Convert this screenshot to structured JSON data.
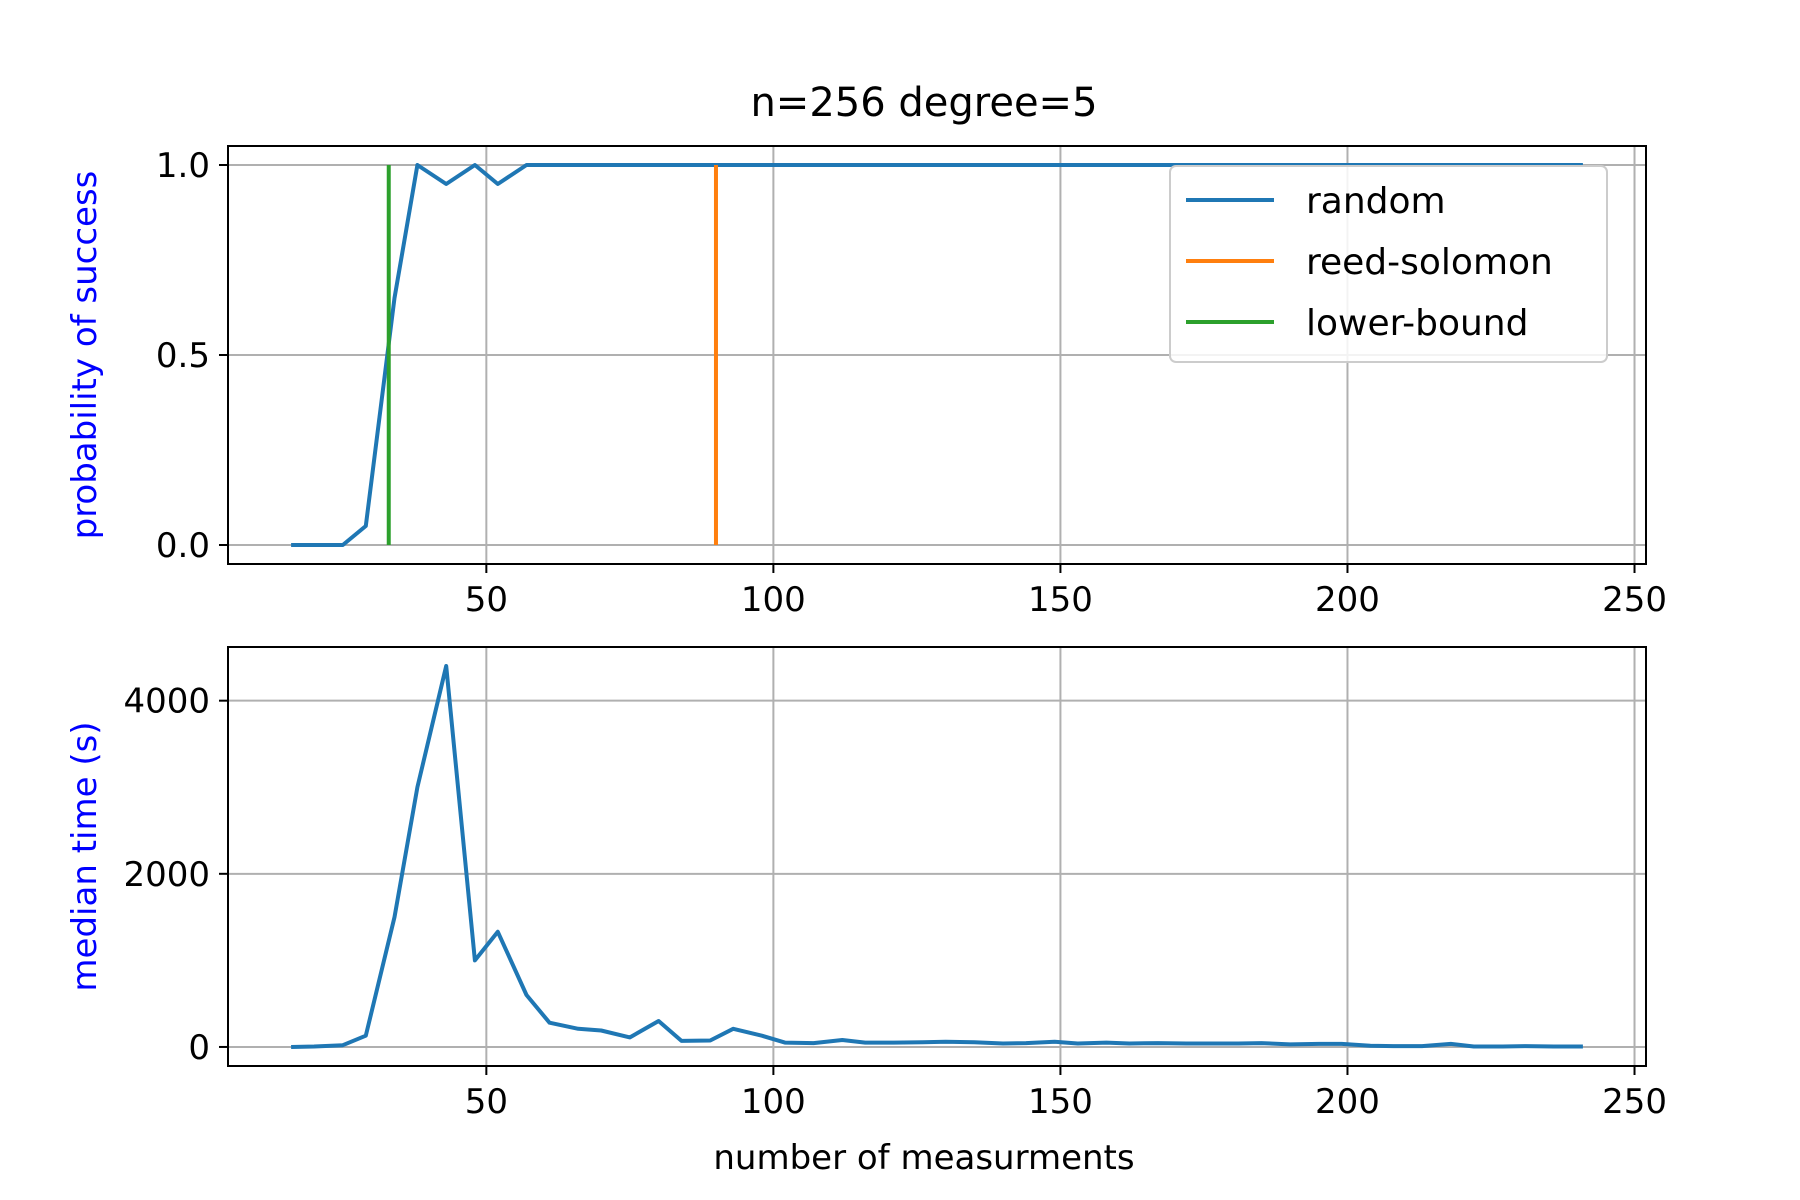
{
  "chart_data": {
    "title": "n=256 degree=5",
    "xlabel": "number of measurments",
    "colors": {
      "random": "#1f77b4",
      "reed-solomon": "#ff7f0e",
      "lower-bound": "#2ca02c",
      "ylabel": "#0000ff",
      "grid": "#b0b0b0"
    },
    "legend_placement": "upper-right",
    "grid": true,
    "panels": [
      {
        "type": "line",
        "ylabel": "probability of success",
        "xlim": [
          5,
          252
        ],
        "ylim": [
          -0.05,
          1.05
        ],
        "xticks": [
          50,
          100,
          150,
          200,
          250
        ],
        "yticks": [
          0.0,
          0.5,
          1.0
        ],
        "ytick_labels": [
          "0.0",
          "0.5",
          "1.0"
        ],
        "legend": [
          "random",
          "reed-solomon",
          "lower-bound"
        ],
        "series": [
          {
            "name": "random",
            "x": [
              16,
              20,
              25,
              29,
              34,
              38,
              43,
              48,
              52,
              57,
              61,
              66,
              70,
              75,
              80,
              84,
              89,
              93,
              98,
              102,
              107,
              112,
              116,
              121,
              126,
              130,
              135,
              140,
              144,
              149,
              153,
              158,
              162,
              167,
              172,
              176,
              181,
              185,
              190,
              195,
              199,
              204,
              208,
              213,
              218,
              222,
              227,
              231,
              236,
              241
            ],
            "y": [
              0,
              0,
              0,
              0.05,
              0.65,
              1.0,
              0.95,
              1.0,
              0.95,
              1.0,
              1.0,
              1.0,
              1.0,
              1.0,
              1.0,
              1.0,
              1.0,
              1.0,
              1.0,
              1.0,
              1.0,
              1.0,
              1.0,
              1.0,
              1.0,
              1.0,
              1.0,
              1.0,
              1.0,
              1.0,
              1.0,
              1.0,
              1.0,
              1.0,
              1.0,
              1.0,
              1.0,
              1.0,
              1.0,
              1.0,
              1.0,
              1.0,
              1.0,
              1.0,
              1.0,
              1.0,
              1.0,
              1.0,
              1.0,
              1.0
            ]
          },
          {
            "name": "reed-solomon",
            "vline_x": 90,
            "y_range": [
              0,
              1
            ]
          },
          {
            "name": "lower-bound",
            "vline_x": 33,
            "y_range": [
              0,
              1
            ]
          }
        ]
      },
      {
        "type": "line",
        "ylabel": "median time (s)",
        "xlim": [
          5,
          252
        ],
        "ylim": [
          -220,
          4620
        ],
        "xticks": [
          50,
          100,
          150,
          200,
          250
        ],
        "yticks": [
          0,
          2000,
          4000
        ],
        "ytick_labels": [
          "0",
          "2000",
          "4000"
        ],
        "series": [
          {
            "name": "random",
            "x": [
              16,
              20,
              25,
              29,
              34,
              38,
              43,
              48,
              52,
              57,
              61,
              66,
              70,
              75,
              80,
              84,
              89,
              93,
              98,
              102,
              107,
              112,
              116,
              121,
              126,
              130,
              135,
              140,
              144,
              149,
              153,
              158,
              162,
              167,
              172,
              176,
              181,
              185,
              190,
              195,
              199,
              204,
              208,
              213,
              218,
              222,
              227,
              231,
              236,
              241
            ],
            "y": [
              0,
              5,
              20,
              130,
              1500,
              3000,
              4400,
              1000,
              1330,
              600,
              280,
              210,
              190,
              110,
              300,
              70,
              75,
              210,
              130,
              50,
              45,
              80,
              50,
              50,
              55,
              60,
              55,
              40,
              45,
              60,
              40,
              50,
              40,
              45,
              40,
              40,
              40,
              45,
              30,
              35,
              35,
              15,
              10,
              10,
              35,
              5,
              5,
              10,
              5,
              5
            ]
          }
        ]
      }
    ]
  }
}
